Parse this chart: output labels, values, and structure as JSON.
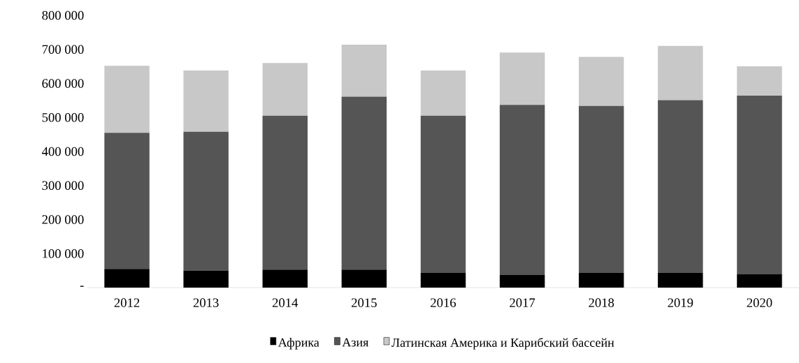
{
  "chart_data": {
    "type": "bar",
    "stacked": true,
    "categories": [
      "2012",
      "2013",
      "2014",
      "2015",
      "2016",
      "2017",
      "2018",
      "2019",
      "2020"
    ],
    "series": [
      {
        "name": "Африка",
        "color": "#000000",
        "values": [
          55000,
          49000,
          53000,
          53000,
          43000,
          38000,
          43000,
          43000,
          40000
        ]
      },
      {
        "name": "Азия",
        "color": "#555555",
        "values": [
          400000,
          409000,
          452000,
          508000,
          462000,
          499000,
          491000,
          508000,
          524000
        ]
      },
      {
        "name": "Латинская Америка и Карибский бассейн",
        "color": "#c8c8c8",
        "values": [
          197000,
          180000,
          155000,
          153000,
          133000,
          154000,
          144000,
          159000,
          86000
        ]
      }
    ],
    "ylim": [
      0,
      800000
    ],
    "yticks": [
      {
        "value": 0,
        "label": "-"
      },
      {
        "value": 100000,
        "label": "100 000"
      },
      {
        "value": 200000,
        "label": "200 000"
      },
      {
        "value": 300000,
        "label": "300 000"
      },
      {
        "value": 400000,
        "label": "400 000"
      },
      {
        "value": 500000,
        "label": "500 000"
      },
      {
        "value": 600000,
        "label": "600 000"
      },
      {
        "value": 700000,
        "label": "700 000"
      },
      {
        "value": 800000,
        "label": "800 000"
      }
    ],
    "grid": false,
    "legend": "bottom"
  }
}
